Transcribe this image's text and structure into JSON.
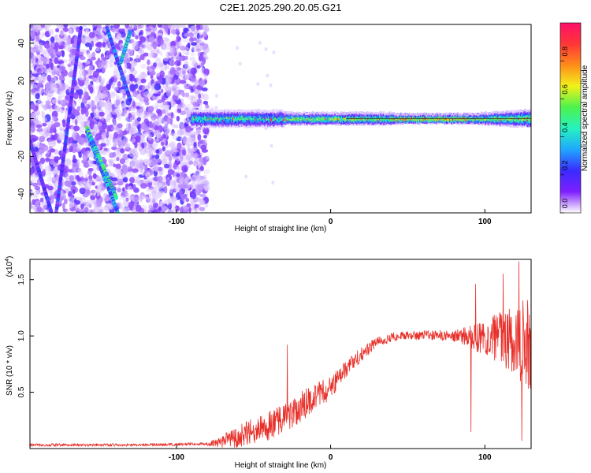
{
  "title": "C2E1.2025.290.20.05.G21",
  "colors": {
    "snr_line": "#e8302a",
    "frame": "#000000",
    "colorbar_stops": [
      "#ff0f6a",
      "#ff3636",
      "#ff8c1a",
      "#f2f21a",
      "#4df24d",
      "#26f2c0",
      "#1fa7ff",
      "#3a2bff",
      "#7f1fff",
      "#ffffff"
    ]
  },
  "chart_data": [
    {
      "type": "heatmap",
      "name": "spectrogram",
      "xlabel": "Height of straight line (km)",
      "ylabel": "Frequency (Hz)",
      "xlim": [
        -195,
        130
      ],
      "ylim": [
        -50,
        50
      ],
      "xticks": [
        -100,
        0,
        100
      ],
      "xtick_labels": [
        "-100",
        "0",
        "100"
      ],
      "yticks": [
        -40,
        -20,
        0,
        20,
        40
      ],
      "ytick_labels": [
        "-40",
        "-20",
        "0",
        "20",
        "40"
      ],
      "noise_region_x": [
        -195,
        -80
      ],
      "signal_band": {
        "x": [
          -90,
          130
        ],
        "center_freq": 0,
        "half_width": 4
      },
      "tracks": [
        {
          "x": [
            -178,
            -162
          ],
          "y": [
            -50,
            48
          ],
          "amp": 0.2
        },
        {
          "x": [
            -195,
            -181
          ],
          "y": [
            -12,
            -50
          ],
          "amp": 0.2
        },
        {
          "x": [
            -145,
            -130
          ],
          "y": [
            48,
            10
          ],
          "amp": 0.25
        },
        {
          "x": [
            -158,
            -138
          ],
          "y": [
            -7,
            -50
          ],
          "amp": 0.3
        },
        {
          "x": [
            -158,
            -139
          ],
          "y": [
            -5,
            -42
          ],
          "amp": 0.4
        },
        {
          "x": [
            -136,
            -130
          ],
          "y": [
            30,
            46
          ],
          "amp": 0.35
        }
      ],
      "colorbar": {
        "label": "Normalized spectral amplitude",
        "range": [
          0.0,
          1.0
        ],
        "ticks": [
          0.0,
          0.2,
          0.4,
          0.6,
          0.8
        ],
        "tick_labels": [
          "0.0",
          "0.2",
          "0.4",
          "0.6",
          "0.8"
        ]
      }
    },
    {
      "type": "line",
      "name": "snr",
      "xlabel": "Height of straight line (km)",
      "ylabel": "SNR (10 * v/v)",
      "scale_note_base": "(x10",
      "scale_note_exp": "4",
      "scale_note_end": ")",
      "xlim": [
        -195,
        130
      ],
      "ylim": [
        0.0,
        1.68
      ],
      "xticks": [
        -100,
        0,
        100
      ],
      "xtick_labels": [
        "-100",
        "0",
        "100"
      ],
      "yticks": [
        0.5,
        1.0,
        1.5
      ],
      "ytick_labels": [
        "0.5",
        "1.0",
        "1.5"
      ],
      "envelope": {
        "x": [
          -195,
          -120,
          -80,
          -75,
          -60,
          -50,
          -40,
          -30,
          -20,
          -10,
          0,
          10,
          20,
          30,
          40,
          60,
          80,
          90,
          100,
          110,
          120,
          130
        ],
        "mean": [
          0.02,
          0.02,
          0.03,
          0.05,
          0.1,
          0.16,
          0.2,
          0.27,
          0.36,
          0.46,
          0.54,
          0.7,
          0.84,
          0.94,
          0.99,
          1.01,
          1.0,
          0.99,
          0.99,
          0.99,
          0.97,
          0.92
        ],
        "noise": [
          0.01,
          0.01,
          0.01,
          0.04,
          0.1,
          0.12,
          0.13,
          0.14,
          0.14,
          0.12,
          0.1,
          0.08,
          0.06,
          0.05,
          0.04,
          0.04,
          0.05,
          0.1,
          0.16,
          0.24,
          0.34,
          0.42
        ]
      },
      "spikes": [
        {
          "x": -28,
          "y": 0.92
        },
        {
          "x": 91,
          "y": 0.15
        },
        {
          "x": 94,
          "y": 1.46
        },
        {
          "x": 112,
          "y": 1.55
        },
        {
          "x": 122,
          "y": 1.66
        },
        {
          "x": 124,
          "y": 0.07
        }
      ]
    }
  ]
}
